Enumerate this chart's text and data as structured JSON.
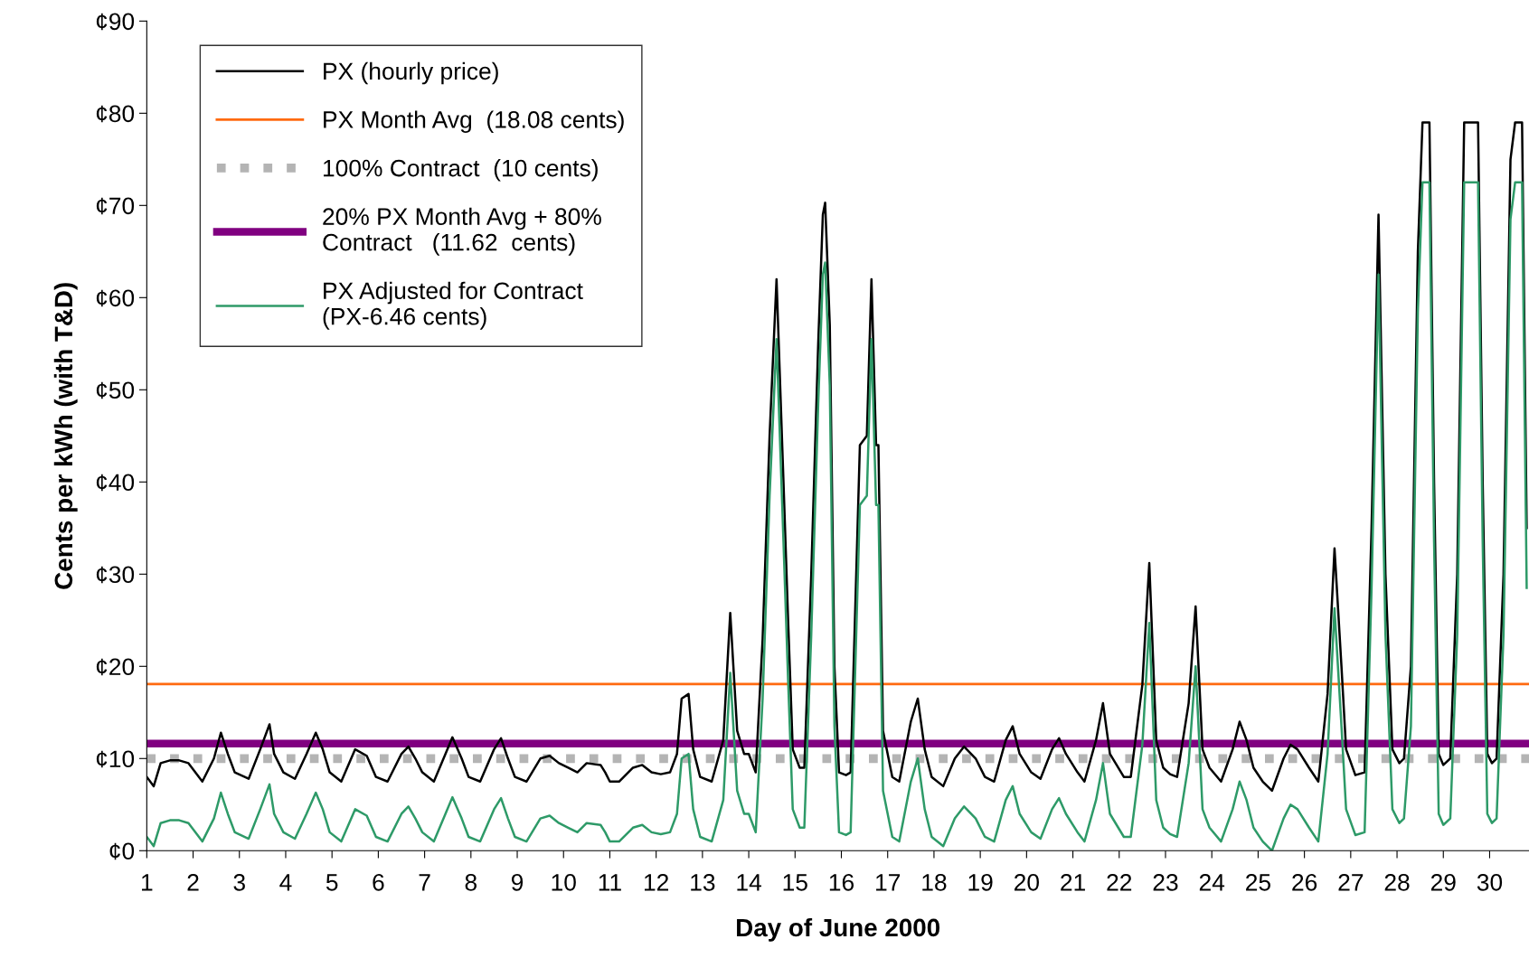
{
  "chart_data": {
    "type": "line",
    "xlabel": "Day of June 2000",
    "ylabel": "Cents per kWh (with T&D)",
    "x": [
      1.0,
      1.15,
      1.3,
      1.5,
      1.7,
      1.9,
      2.2,
      2.45,
      2.6,
      2.75,
      2.9,
      3.2,
      3.45,
      3.65,
      3.75,
      3.95,
      4.2,
      4.45,
      4.65,
      4.8,
      4.95,
      5.2,
      5.5,
      5.75,
      5.95,
      6.2,
      6.5,
      6.65,
      6.8,
      6.95,
      7.2,
      7.45,
      7.6,
      7.8,
      7.95,
      8.2,
      8.5,
      8.65,
      8.8,
      8.95,
      9.2,
      9.5,
      9.7,
      9.9,
      10.1,
      10.3,
      10.5,
      10.8,
      10.9,
      11.0,
      11.2,
      11.5,
      11.7,
      11.9,
      12.1,
      12.3,
      12.45,
      12.55,
      12.7,
      12.8,
      12.95,
      13.2,
      13.45,
      13.6,
      13.75,
      13.9,
      14.0,
      14.15,
      14.3,
      14.45,
      14.6,
      14.75,
      14.85,
      14.95,
      15.1,
      15.2,
      15.35,
      15.5,
      15.6,
      15.65,
      15.75,
      15.85,
      15.95,
      16.1,
      16.2,
      16.4,
      16.55,
      16.65,
      16.75,
      16.8,
      16.9,
      17.1,
      17.25,
      17.5,
      17.65,
      17.8,
      17.95,
      18.2,
      18.45,
      18.65,
      18.9,
      19.1,
      19.3,
      19.55,
      19.7,
      19.85,
      20.1,
      20.3,
      20.55,
      20.7,
      20.85,
      21.1,
      21.25,
      21.5,
      21.65,
      21.8,
      22.1,
      22.25,
      22.5,
      22.65,
      22.8,
      22.95,
      23.1,
      23.25,
      23.5,
      23.65,
      23.8,
      23.95,
      24.2,
      24.45,
      24.6,
      24.75,
      24.9,
      25.1,
      25.3,
      25.55,
      25.7,
      25.85,
      26.1,
      26.3,
      26.5,
      26.65,
      26.8,
      26.9,
      27.1,
      27.3,
      27.45,
      27.6,
      27.75,
      27.9,
      28.05,
      28.15,
      28.3,
      28.45,
      28.55,
      28.7,
      28.8,
      28.9,
      29.0,
      29.15,
      29.3,
      29.45,
      29.75,
      29.85,
      29.95,
      30.05,
      30.15,
      30.3,
      30.45,
      30.55,
      30.7,
      30.8
    ],
    "series": [
      {
        "name": "PX (hourly price)",
        "color": "#000000",
        "values": [
          8,
          7,
          9.5,
          9.8,
          9.8,
          9.5,
          7.5,
          10,
          12.8,
          10.5,
          8.5,
          7.8,
          11,
          13.7,
          10.5,
          8.5,
          7.8,
          10.5,
          12.8,
          11,
          8.5,
          7.5,
          11,
          10.3,
          8,
          7.5,
          10.5,
          11.3,
          10,
          8.5,
          7.5,
          10.5,
          12.3,
          10,
          8,
          7.5,
          11,
          12.2,
          10,
          8,
          7.5,
          10,
          10.3,
          9.5,
          9,
          8.5,
          9.5,
          9.3,
          8.5,
          7.5,
          7.5,
          9,
          9.3,
          8.5,
          8.3,
          8.5,
          10.5,
          16.5,
          17,
          11,
          8,
          7.5,
          12,
          25.8,
          13,
          10.5,
          10.5,
          8.5,
          23,
          45,
          62,
          40,
          25,
          11,
          9,
          9,
          30,
          55,
          69,
          70.3,
          57,
          20,
          8.5,
          8.2,
          8.5,
          44,
          45,
          62,
          44,
          44,
          13,
          8,
          7.5,
          14,
          16.5,
          11,
          8,
          7,
          10,
          11.3,
          10,
          8,
          7.5,
          12,
          13.5,
          10.5,
          8.5,
          7.8,
          11,
          12.2,
          10.5,
          8.5,
          7.5,
          12,
          16,
          10.5,
          8,
          8,
          18,
          31.2,
          12,
          9,
          8.3,
          8,
          16,
          26.5,
          11,
          9,
          7.5,
          11,
          14,
          12,
          9,
          7.5,
          6.5,
          10,
          11.5,
          11,
          9,
          7.5,
          17,
          32.8,
          20,
          11,
          8.2,
          8.5,
          35,
          69,
          30,
          11,
          9.5,
          10,
          20,
          65,
          79,
          79,
          40,
          10.5,
          9.3,
          10,
          30,
          79,
          79,
          40,
          10.5,
          9.5,
          10,
          30,
          75,
          79,
          79,
          35
        ]
      },
      {
        "name": "PX Adjusted for Contract\n(PX-6.46 cents)",
        "color": "#2e9a68",
        "values": [
          1.5,
          0.5,
          3.0,
          3.3,
          3.3,
          3.0,
          1.0,
          3.5,
          6.3,
          4.0,
          2.0,
          1.3,
          4.5,
          7.2,
          4.0,
          2.0,
          1.3,
          4.0,
          6.3,
          4.5,
          2.0,
          1.0,
          4.5,
          3.8,
          1.5,
          1.0,
          4.0,
          4.8,
          3.5,
          2.0,
          1.0,
          4.0,
          5.8,
          3.5,
          1.5,
          1.0,
          4.5,
          5.7,
          3.5,
          1.5,
          1.0,
          3.5,
          3.8,
          3.0,
          2.5,
          2.0,
          3.0,
          2.8,
          2.0,
          1.0,
          1.0,
          2.5,
          2.8,
          2.0,
          1.8,
          2.0,
          4.0,
          10.0,
          10.5,
          4.5,
          1.5,
          1.0,
          5.5,
          19.3,
          6.5,
          4.0,
          4.0,
          2.0,
          16.5,
          38.5,
          55.5,
          33.5,
          18.5,
          4.5,
          2.5,
          2.5,
          23.5,
          48.5,
          62.5,
          63.8,
          50.5,
          13.5,
          2.0,
          1.7,
          2.0,
          37.5,
          38.5,
          55.5,
          37.5,
          37.5,
          6.5,
          1.5,
          1.0,
          7.5,
          10.0,
          4.5,
          1.5,
          0.5,
          3.5,
          4.8,
          3.5,
          1.5,
          1.0,
          5.5,
          7.0,
          4.0,
          2.0,
          1.3,
          4.5,
          5.7,
          4.0,
          2.0,
          1.0,
          5.5,
          9.5,
          4.0,
          1.5,
          1.5,
          11.5,
          24.7,
          5.5,
          2.5,
          1.8,
          1.5,
          9.5,
          20.0,
          4.5,
          2.5,
          1.0,
          4.5,
          7.5,
          5.5,
          2.5,
          1.0,
          0.0,
          3.5,
          5.0,
          4.5,
          2.5,
          1.0,
          10.5,
          26.3,
          13.5,
          4.5,
          1.7,
          2.0,
          28.5,
          62.5,
          23.5,
          4.5,
          3.0,
          3.5,
          13.5,
          58.5,
          72.5,
          72.5,
          33.5,
          4.0,
          2.8,
          3.5,
          23.5,
          72.5,
          72.5,
          33.5,
          4.0,
          3.0,
          3.5,
          23.5,
          68.5,
          72.5,
          72.5,
          28.5
        ]
      }
    ],
    "ref_lines": [
      {
        "axis": "y",
        "value": 18.08,
        "label": "PX Month Avg  (18.08 cents)",
        "color": "#ff6a10",
        "line_style": "solid"
      },
      {
        "axis": "y",
        "value": 10,
        "label": "100% Contract  (10 cents)",
        "color": "#b4b4b4",
        "line_style": "dotted"
      },
      {
        "axis": "y",
        "value": 11.62,
        "label": "20% PX Month Avg + 80%\nContract   (11.62  cents)",
        "color": "#800080",
        "line_style": "solid"
      }
    ],
    "xlim": [
      1,
      30.85
    ],
    "xticks": [
      1,
      2,
      3,
      4,
      5,
      6,
      7,
      8,
      9,
      10,
      11,
      12,
      13,
      14,
      15,
      16,
      17,
      18,
      19,
      20,
      21,
      22,
      23,
      24,
      25,
      26,
      27,
      28,
      29,
      30
    ],
    "ylim": [
      0,
      90
    ],
    "yticks": [
      {
        "value": 0,
        "label": "¢0"
      },
      {
        "value": 10,
        "label": "¢10"
      },
      {
        "value": 20,
        "label": "¢20"
      },
      {
        "value": 30,
        "label": "¢30"
      },
      {
        "value": 40,
        "label": "¢40"
      },
      {
        "value": 50,
        "label": "¢50"
      },
      {
        "value": 60,
        "label": "¢60"
      },
      {
        "value": 70,
        "label": "¢70"
      },
      {
        "value": 80,
        "label": "¢80"
      },
      {
        "value": 90,
        "label": "¢90"
      }
    ],
    "grid": false,
    "legend": "top left",
    "line_style": "solid",
    "marker": "none"
  }
}
